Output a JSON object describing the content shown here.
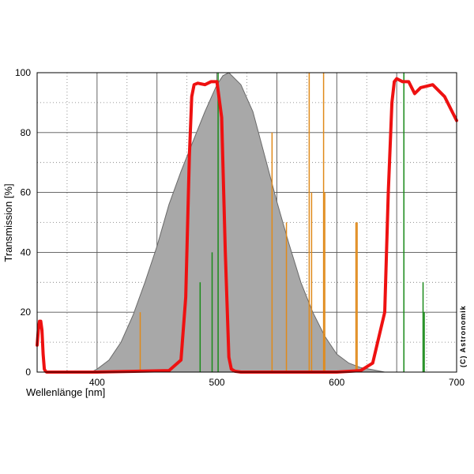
{
  "chart_data": {
    "type": "line",
    "title": "",
    "xlabel": "Wellenlänge [nm]",
    "ylabel": "Transmission [%]",
    "xlim": [
      350,
      700
    ],
    "ylim": [
      0,
      100
    ],
    "x_ticks": [
      "400",
      "500",
      "600",
      "700"
    ],
    "y_ticks": [
      "0",
      "20",
      "40",
      "60",
      "80",
      "100"
    ],
    "grid": true,
    "copyright": "(C) Astronomik",
    "colors": {
      "filter": "#ee1111",
      "eye": "#a8a8a8",
      "sodium_mercury": "#e08a1a",
      "emission": "#1a8a1a"
    },
    "series": [
      {
        "key": "eye",
        "type": "area",
        "x": [
          350,
          395,
          400,
          410,
          420,
          430,
          440,
          450,
          460,
          470,
          480,
          490,
          500,
          505,
          510,
          520,
          530,
          540,
          550,
          560,
          570,
          580,
          590,
          600,
          610,
          620,
          630,
          640,
          700
        ],
        "y": [
          0,
          0,
          1,
          4,
          10,
          19,
          30,
          42,
          56,
          67,
          77,
          87,
          96,
          99,
          100,
          96,
          87,
          72,
          57,
          43,
          30,
          20,
          12,
          6,
          3,
          1.5,
          0.8,
          0,
          0
        ]
      },
      {
        "key": "filter",
        "type": "line",
        "x": [
          350,
          351,
          352,
          353,
          354,
          355,
          356,
          357,
          358,
          360,
          370,
          400,
          460,
          470,
          474,
          477,
          479,
          481,
          484,
          490,
          495,
          500,
          504,
          507,
          510,
          512,
          515,
          520,
          600,
          620,
          630,
          640,
          643,
          646,
          648,
          650,
          655,
          660,
          665,
          670,
          680,
          690,
          700
        ],
        "y": [
          9,
          14,
          17,
          17,
          14,
          6,
          1,
          0.3,
          0,
          0,
          0,
          0,
          0.5,
          4,
          25,
          72,
          92,
          96,
          96.5,
          96,
          97,
          97,
          85,
          40,
          5,
          1,
          0.3,
          0,
          0,
          0.5,
          3,
          20,
          60,
          90,
          97,
          98,
          97,
          97,
          93,
          95,
          96,
          92,
          84
        ]
      }
    ],
    "orange_lines": [
      {
        "x": 436,
        "y": 20
      },
      {
        "x": 546,
        "y": 80
      },
      {
        "x": 558,
        "y": 50
      },
      {
        "x": 577,
        "y": 100
      },
      {
        "x": 579,
        "y": 60
      },
      {
        "x": 589,
        "y": 100
      },
      {
        "x": 590,
        "y": 60
      },
      {
        "x": 616,
        "y": 50
      },
      {
        "x": 617,
        "y": 50
      }
    ],
    "green_lines": [
      {
        "x": 486,
        "y": 30
      },
      {
        "x": 496,
        "y": 40
      },
      {
        "x": 501,
        "y": 100
      },
      {
        "x": 656,
        "y": 100
      },
      {
        "x": 672,
        "y": 30
      },
      {
        "x": 673,
        "y": 20
      }
    ]
  }
}
